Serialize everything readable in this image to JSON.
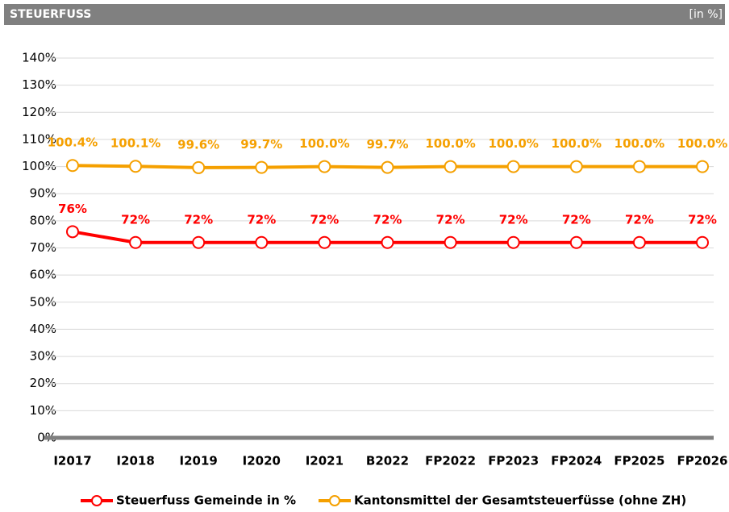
{
  "chart_data": {
    "type": "line",
    "title": "STEUERFUSS",
    "unit": "[in %]",
    "categories": [
      "I2017",
      "I2018",
      "I2019",
      "I2020",
      "I2021",
      "B2022",
      "FP2022",
      "FP2023",
      "FP2024",
      "FP2025",
      "FP2026"
    ],
    "series": [
      {
        "name": "Steuerfuss Gemeinde in %",
        "color": "#ff0000",
        "values": [
          76,
          72,
          72,
          72,
          72,
          72,
          72,
          72,
          72,
          72,
          72
        ],
        "value_labels": [
          "76%",
          "72%",
          "72%",
          "72%",
          "72%",
          "72%",
          "72%",
          "72%",
          "72%",
          "72%",
          "72%"
        ]
      },
      {
        "name": "Kantonsmittel der Gesamtsteuerfüsse (ohne ZH)",
        "color": "#f5a000",
        "values": [
          100.4,
          100.1,
          99.6,
          99.7,
          100.0,
          99.7,
          100.0,
          100.0,
          100.0,
          100.0,
          100.0
        ],
        "value_labels": [
          "100.4%",
          "100.1%",
          "99.6%",
          "99.7%",
          "100.0%",
          "99.7%",
          "100.0%",
          "100.0%",
          "100.0%",
          "100.0%",
          "100.0%"
        ]
      }
    ],
    "ylim": [
      0,
      140
    ],
    "yticks": [
      {
        "value": 0,
        "label": "0%"
      },
      {
        "value": 10,
        "label": "10%"
      },
      {
        "value": 20,
        "label": "20%"
      },
      {
        "value": 30,
        "label": "30%"
      },
      {
        "value": 40,
        "label": "40%"
      },
      {
        "value": 50,
        "label": "50%"
      },
      {
        "value": 60,
        "label": "60%"
      },
      {
        "value": 70,
        "label": "70%"
      },
      {
        "value": 80,
        "label": "80%"
      },
      {
        "value": 90,
        "label": "90%"
      },
      {
        "value": 100,
        "label": "100%"
      },
      {
        "value": 110,
        "label": "110%"
      },
      {
        "value": 120,
        "label": "120%"
      },
      {
        "value": 130,
        "label": "130%"
      },
      {
        "value": 140,
        "label": "140%"
      }
    ],
    "grid": true,
    "legend": "bottom"
  }
}
